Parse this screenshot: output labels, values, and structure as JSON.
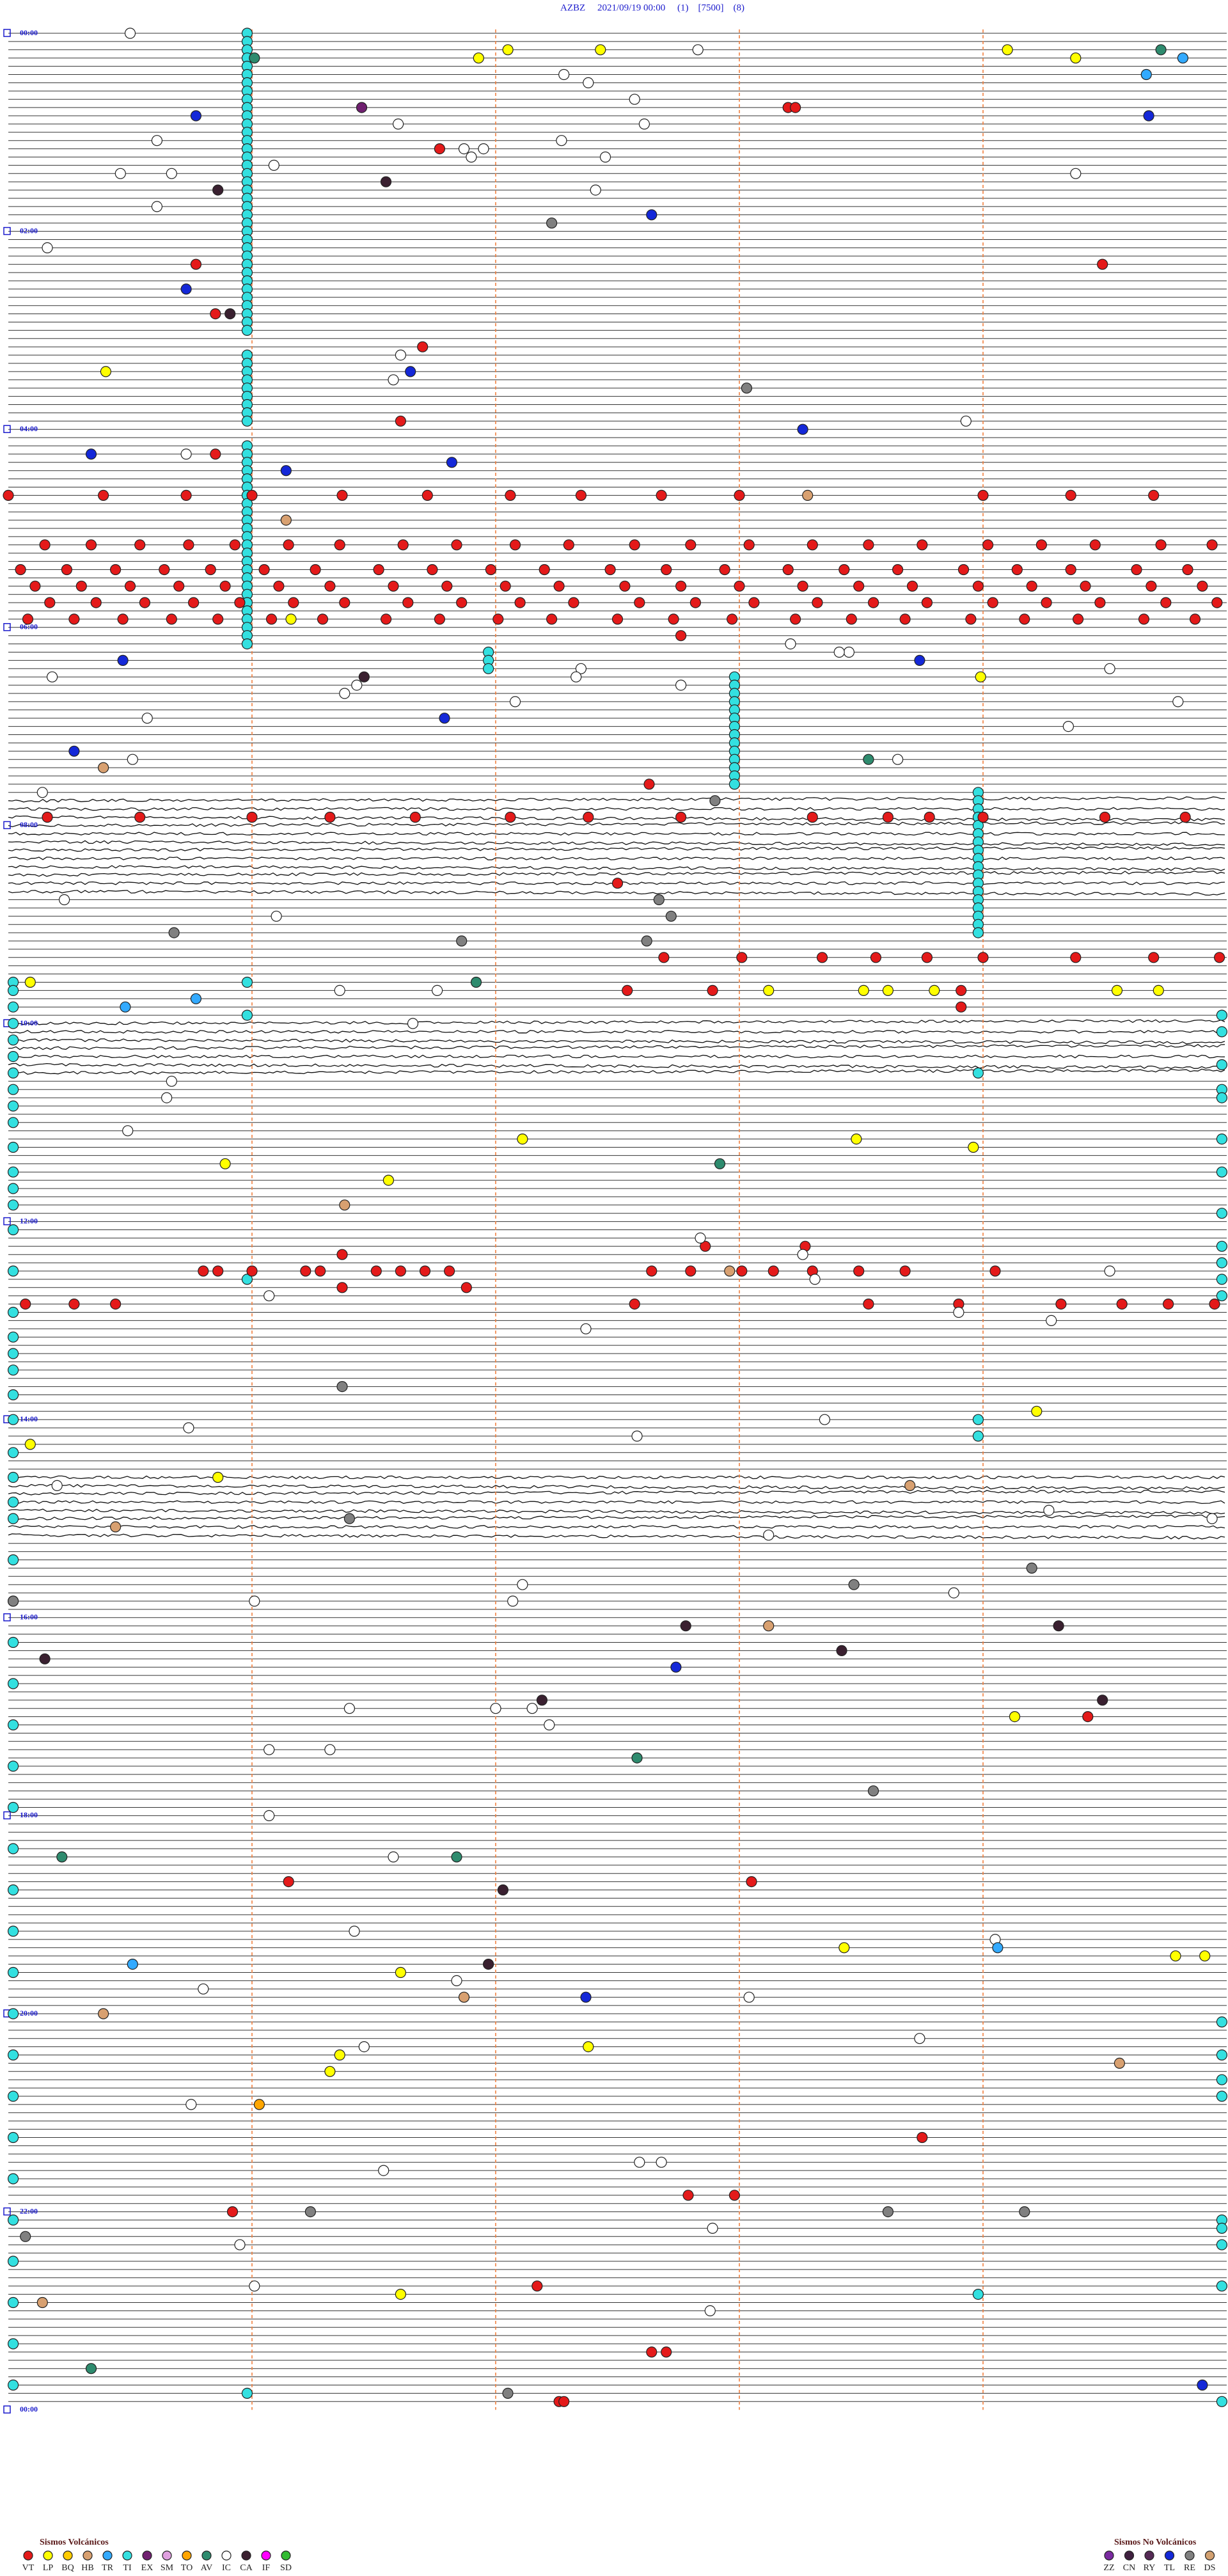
{
  "title": "AZBZ     2021/09/19 00:00     (1)    [7500]    (8)",
  "minutes_per_line": 5,
  "hours": [
    {
      "value": 0,
      "label": "00:00"
    },
    {
      "value": 120,
      "label": "02:00"
    },
    {
      "value": 240,
      "label": "04:00"
    },
    {
      "value": 360,
      "label": "06:00"
    },
    {
      "value": 480,
      "label": "08:00"
    },
    {
      "value": 600,
      "label": "10:00"
    },
    {
      "value": 720,
      "label": "12:00"
    },
    {
      "value": 840,
      "label": "14:00"
    },
    {
      "value": 960,
      "label": "16:00"
    },
    {
      "value": 1080,
      "label": "18:00"
    },
    {
      "value": 1200,
      "label": "20:00"
    },
    {
      "value": 1320,
      "label": "22:00"
    },
    {
      "value": 1440,
      "label": "00:00"
    }
  ],
  "legend_volcanic": {
    "title": "Sismos Volcánicos",
    "items": [
      {
        "code": "VT",
        "color": "#e41a1a"
      },
      {
        "code": "LP",
        "color": "#ffff00"
      },
      {
        "code": "BQ",
        "color": "#ffcc00"
      },
      {
        "code": "HB",
        "color": "#d8a070"
      },
      {
        "code": "TR",
        "color": "#33aaff"
      },
      {
        "code": "TI",
        "color": "#33e0e0"
      },
      {
        "code": "EX",
        "color": "#702070"
      },
      {
        "code": "SM",
        "color": "#e0a0e0"
      },
      {
        "code": "TO",
        "color": "#ffa500"
      },
      {
        "code": "AV",
        "color": "#2e8b6e"
      },
      {
        "code": "IC",
        "color": "#ffffff"
      },
      {
        "code": "CA",
        "color": "#3a2030"
      },
      {
        "code": "IF",
        "color": "#ff00ff"
      },
      {
        "code": "SD",
        "color": "#33bb33"
      }
    ]
  },
  "legend_non_volcanic": {
    "title": "Sismos No Volcánicos",
    "items": [
      {
        "code": "ZZ",
        "color": "#7a2aa0"
      },
      {
        "code": "CN",
        "color": "#402040"
      },
      {
        "code": "RY",
        "color": "#552a55"
      },
      {
        "code": "TL",
        "color": "#1428d8"
      },
      {
        "code": "RE",
        "color": "#808080"
      },
      {
        "code": "DS",
        "color": "#d2a070"
      }
    ]
  },
  "events": [
    {
      "type": "TI",
      "minutes": [
        0.98,
        5.98,
        10.98,
        15.98,
        20.98,
        25.98,
        30.98,
        35.98,
        40.98,
        45.98,
        50.98,
        55.98,
        60.98,
        65.98,
        70.98,
        75.98,
        80.98,
        85.98,
        90.98,
        95.98,
        100.98,
        105.98,
        110.98,
        115.98,
        120.98,
        125.98,
        130.98,
        135.98,
        140.98,
        145.98,
        150.98,
        155.98,
        160.98,
        165.98,
        170.98,
        175.98,
        180.98,
        195.98,
        200.98,
        205.98,
        210.98,
        215.98,
        220.98,
        225.98,
        230.98,
        235.98,
        250.98,
        255.98,
        260.98,
        265.98,
        270.98,
        275.98,
        280.98,
        285.98,
        290.98,
        295.98,
        300.98,
        305.98,
        310.98,
        315.98,
        320.98,
        325.98,
        330.98,
        335.98,
        340.98,
        345.98,
        350.98,
        355.98,
        360.98,
        365.98,
        370.98,
        376.97,
        381.97,
        386.97,
        392.98,
        397.98,
        402.98,
        407.98,
        412.98,
        417.98,
        422.98,
        427.98,
        432.98,
        437.98,
        442.98,
        447.98,
        452.98,
        457.98,
        463.98,
        468.98,
        473.98,
        478.98,
        483.98,
        488.98,
        493.98,
        498.98,
        503.98,
        508.98,
        513.98,
        518.98,
        523.98,
        528.98,
        533.98,
        538.98,
        543.98,
        548.98,
        575.98,
        595.98,
        633.98,
        755.98,
        843.98,
        853.98,
        1373.98,
        1430.98,
        1439.98,
        599.98,
        609.98,
        629.98,
        644.98,
        649.98,
        674.98,
        694.98,
        719.98,
        739.98,
        749.98,
        759.98,
        769.98,
        1209.98,
        1229.98,
        1244.98,
        1254.98,
        1329.98,
        1334.98,
        1344.98,
        1369.98,
        575.02,
        580.02,
        590.02,
        600.02,
        610.02,
        620.02,
        630.02,
        640.02,
        650.02,
        660.02,
        675.02,
        690.02,
        700.02,
        710.02,
        725.02,
        750.02,
        775.02,
        790.02,
        800.02,
        810.02,
        825.02,
        840.02,
        860.02,
        875.02,
        890.02,
        900.02,
        925.02,
        950.02,
        975.02,
        1000.02,
        1025.02,
        1050.02,
        1075.02,
        1100.02,
        1125.02,
        1150.02,
        1175.02,
        1200.02,
        1225.02,
        1250.02,
        1275.02,
        1300.02,
        1325.02,
        1350.02,
        1375.02,
        1400.02,
        1425.02
      ]
    },
    {
      "type": "VT",
      "minutes": [
        280,
        280.39,
        280.73,
        281,
        281.37,
        281.72,
        282.06,
        282.35,
        282.68,
        283,
        284,
        284.36,
        284.7,
        310.15,
        310.34,
        310.54,
        310.74,
        310.93,
        311.15,
        311.36,
        311.62,
        311.84,
        312.08,
        312.3,
        312.57,
        312.8,
        313.04,
        313.3,
        313.53,
        313.75,
        314.02,
        314.24,
        314.46,
        314.73,
        314.94,
        325.05,
        325.24,
        325.44,
        325.64,
        325.83,
        326.05,
        326.26,
        326.52,
        326.74,
        326.98,
        327.2,
        327.47,
        327.7,
        327.94,
        328.2,
        328.43,
        328.65,
        328.92,
        329.14,
        329.36,
        329.63,
        329.84,
        335.11,
        335.3,
        335.5,
        335.7,
        335.89,
        336.11,
        336.32,
        336.58,
        336.8,
        337.04,
        337.26,
        337.53,
        337.76,
        338,
        338.26,
        338.49,
        338.71,
        338.98,
        339.2,
        339.42,
        339.69,
        339.9,
        345.17,
        345.36,
        345.56,
        345.76,
        345.95,
        346.17,
        346.38,
        346.64,
        346.86,
        347.1,
        347.32,
        347.59,
        347.82,
        348.06,
        348.32,
        348.55,
        348.77,
        349.04,
        349.26,
        349.48,
        349.75,
        349.96,
        355.08,
        355.27,
        355.47,
        355.67,
        355.86,
        356.08,
        356.29,
        356.55,
        356.77,
        357.01,
        357.23,
        357.5,
        357.73,
        357.97,
        358.23,
        358.46,
        358.68,
        358.95,
        359.17,
        359.39,
        359.66,
        359.87,
        71.77,
        48.2,
        48.23,
        140.77,
        144.49,
        170.85,
        191.7,
        236.61,
        255.85,
        367.76,
        457.63,
        475.16,
        475.54,
        476,
        476.32,
        476.67,
        477.06,
        477.38,
        477.76,
        478.3,
        478.61,
        478.78,
        479,
        479.5,
        479.83,
        517.5,
        562.69,
        563.01,
        563.34,
        563.56,
        563.77,
        564,
        564.38,
        564.7,
        564.97,
        582.54,
        582.89,
        583.91,
        593.91,
        737.86,
        738.27,
        741.37,
        750.8,
        750.86,
        751,
        751.22,
        751.28,
        751.51,
        751.61,
        751.71,
        751.81,
        752.64,
        752.8,
        753.01,
        753.14,
        753.3,
        753.49,
        753.68,
        754.05,
        761.37,
        761.88,
        770.07,
        770.27,
        770.44,
        772.57,
        773.53,
        773.9,
        774.32,
        774.57,
        774.76,
        774.95,
        1024.43,
        1121.15,
        1123.05,
        1278.75,
        1312.79,
        1312.98,
        1320.92,
        1367.17,
        1407.64,
        1407.7,
        1437.26,
        1437.28
      ]
    },
    {
      "type": "LP",
      "minutes": [
        12.05,
        16.93,
        12.43,
        14.1,
        19.38,
        205.4,
        356.16,
        393.99,
        575.09,
        583.12,
        583.51,
        583.61,
        583.8,
        584.55,
        584.72,
        672.11,
        673.48,
        678.96,
        685.89,
        696.56,
        839.22,
        855.09,
        875.86,
        1024.13,
        1163.43,
        1169.79,
        1169.91,
        1176.61,
        1222.38,
        1226.36,
        1236.32,
        1371.61
      ]
    },
    {
      "type": "IC",
      "minutes": [
        0.5,
        12.83,
        27.28,
        32.38,
        42.57,
        56.6,
        57.61,
        65.61,
        67.27,
        71.87,
        71.95,
        76.9,
        77.45,
        81.09,
        85.46,
        85.67,
        89.38,
        97.41,
        105.61,
        130.16,
        196.61,
        211.58,
        238.93,
        255.73,
        373.21,
        378.45,
        378.41,
        390.18,
        387.35,
        392.33,
        396.43,
        401.38,
        389.52,
        397.76,
        407.08,
        415.57,
        424.35,
        409.8,
        440.51,
        443.65,
        460.14,
        525.23,
        536.1,
        581.36,
        581.76,
        601.66,
        635.67,
        645.65,
        665.49,
        732.84,
        743.26,
        758.31,
        754.52,
        766.07,
        778.9,
        784.28,
        787.37,
        843.35,
        845.74,
        852.58,
        880.2,
        913.12,
        899.27,
        904.94,
        942.11,
        948.88,
        951.01,
        952.07,
        1016.4,
        1017,
        1017.15,
        1027.22,
        1041.07,
        1041.32,
        1081.07,
        1106.58,
        1151.42,
        1159.05,
        1181.84,
        1185.8,
        1193.04,
        1218.74,
        1221.46,
        1255.75,
        1292.59,
        1292.68,
        1296.54,
        1332.89,
        1340.95,
        1366.01,
        1382.88
      ]
    },
    {
      "type": "TR",
      "minutes": [
        19.82,
        29.67,
        585.77,
        590.48,
        1164.06,
        1170.51
      ]
    },
    {
      "type": "TL",
      "minutes": [
        50.77,
        54.68,
        112.64,
        155.73,
        206.65,
        243.26,
        255.34,
        261.82,
        266.14,
        380.47,
        383.74,
        416.79,
        435.27,
        992.74,
        1192.37,
        1429.9
      ]
    },
    {
      "type": "AV",
      "minutes": [
        14.73,
        16.01,
        443.53,
        576.92,
        687.92,
        1047.58,
        1105.22,
        1106.84,
        1415.34
      ]
    },
    {
      "type": "EX",
      "minutes": [
        46.45
      ]
    },
    {
      "type": "CA",
      "minutes": [
        91.55,
        95.86,
        170.91,
        391.46,
        967.78,
        969.31,
        983.42,
        985.15,
        1012.19,
        1014.49,
        1127.03,
        1171.97
      ]
    },
    {
      "type": "RE",
      "minutes": [
        117.23,
        218.03,
        467.9,
        527.67,
        537.72,
        545.68,
        551.86,
        552.62,
        821.37,
        901.4,
        934.2,
        943.47,
        950.02,
        1068.55,
        1321.24,
        1323.61,
        1324.17,
        1335.07,
        1432.05
      ]
    },
    {
      "type": "HB",
      "minutes": [
        283.28,
        296.14,
        445.39,
        711.38,
        752.96,
        883.7,
        905.44,
        968.12,
        1191.87,
        1200.39,
        1234.56,
        1375.14
      ]
    },
    {
      "type": "TO",
      "minutes": [
        1256.03
      ]
    }
  ]
}
